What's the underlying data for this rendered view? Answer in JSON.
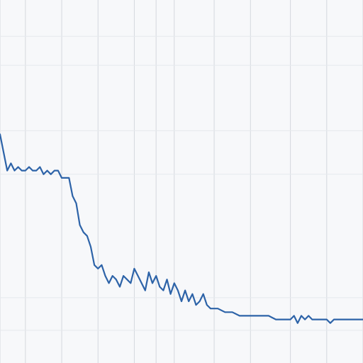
{
  "chart_data": {
    "type": "line",
    "title": "",
    "xlabel": "",
    "ylabel": "",
    "grid": true,
    "legend": "none",
    "colors": {
      "background": "#f7f8fa",
      "series": "#2d63a8",
      "grid": "#d4d8de"
    },
    "xlim": [
      0,
      100
    ],
    "ylim": [
      0,
      100
    ],
    "series": [
      {
        "name": "",
        "x": [
          0,
          1,
          2,
          3,
          4,
          5,
          6,
          7,
          8,
          9,
          10,
          11,
          12,
          13,
          14,
          15,
          16,
          17,
          18,
          19,
          20,
          21,
          22,
          23,
          24,
          25,
          26,
          27,
          28,
          29,
          30,
          31,
          32,
          33,
          34,
          35,
          36,
          37,
          38,
          39,
          40,
          41,
          42,
          43,
          44,
          45,
          46,
          47,
          48,
          49,
          50,
          51,
          52,
          53,
          54,
          55,
          56,
          57,
          58,
          59,
          60,
          62,
          64,
          66,
          68,
          70,
          72,
          74,
          76,
          78,
          80,
          81,
          82,
          83,
          84,
          85,
          86,
          88,
          90,
          91,
          92,
          94,
          96,
          98,
          100
        ],
        "values": [
          63,
          58,
          53,
          55,
          53,
          54,
          53,
          53,
          54,
          53,
          53,
          54,
          52,
          53,
          52,
          53,
          53,
          51,
          51,
          51,
          46,
          44,
          38,
          36,
          35,
          32,
          27,
          26,
          27,
          24,
          22,
          24,
          23,
          21,
          24,
          23,
          22,
          26,
          24,
          22,
          20,
          25,
          22,
          24,
          21,
          20,
          23,
          19,
          22,
          20,
          17,
          20,
          17,
          19,
          16,
          17,
          19,
          16,
          15,
          15,
          15,
          14,
          14,
          13,
          13,
          13,
          13,
          13,
          12,
          12,
          12,
          13,
          11,
          13,
          12,
          13,
          12,
          12,
          12,
          11,
          12,
          12,
          12,
          12,
          12
        ]
      }
    ]
  }
}
